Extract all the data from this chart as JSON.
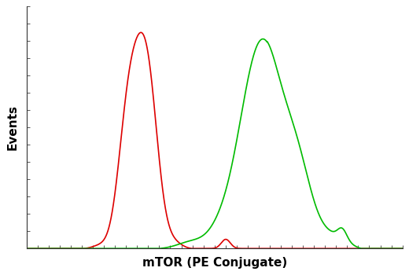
{
  "title": "",
  "xlabel": "mTOR (PE Conjugate)",
  "ylabel": "Events",
  "xlabel_fontsize": 11,
  "ylabel_fontsize": 11,
  "bg_color": "#ffffff",
  "plot_bg_color": "#ffffff",
  "red_color": "#dd0000",
  "green_color": "#00bb00",
  "xlim": [
    0.0,
    1.0
  ],
  "ylim": [
    0.0,
    1.12
  ],
  "linewidth": 1.2,
  "figsize": [
    5.2,
    3.5
  ],
  "dpi": 100
}
